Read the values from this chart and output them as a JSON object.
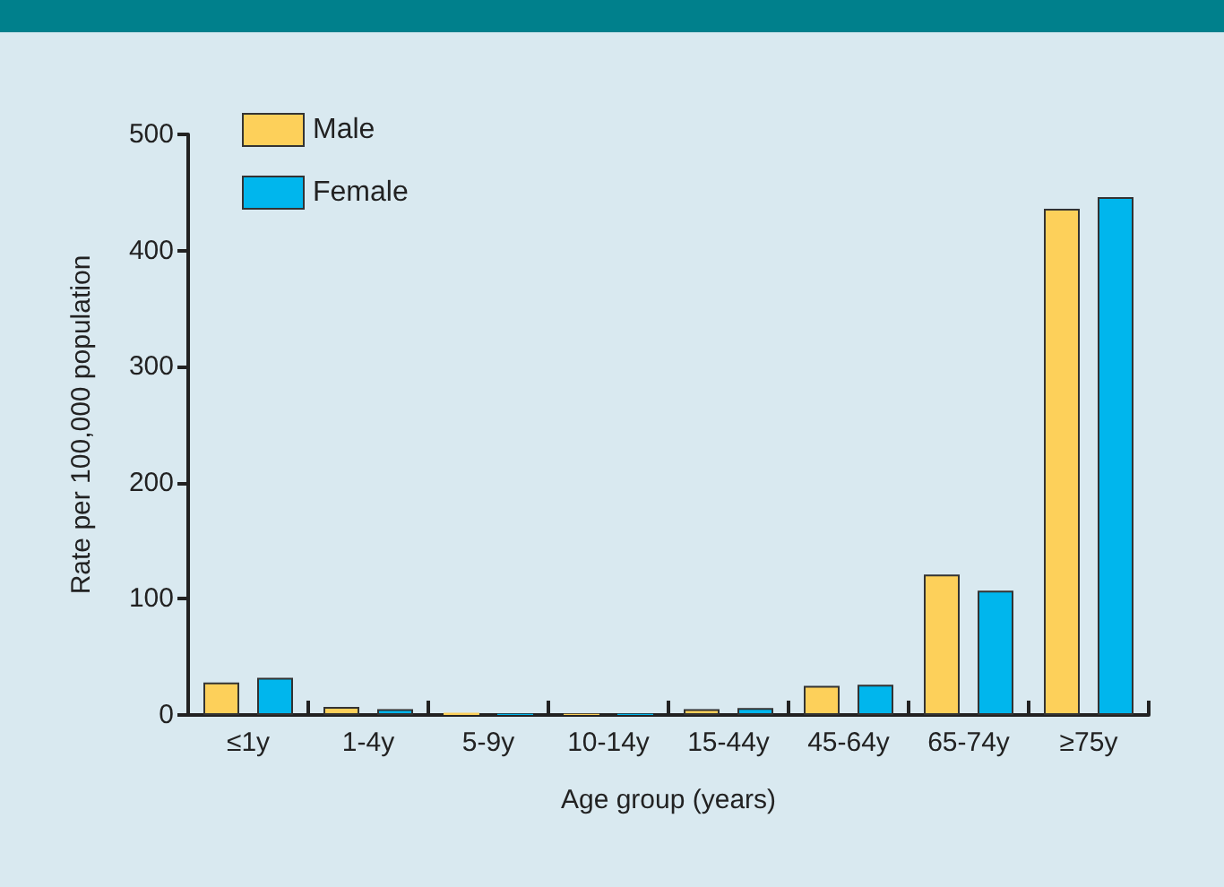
{
  "chart_data": {
    "type": "bar",
    "xlabel": "Age group (years)",
    "ylabel": "Rate per 100,000 population",
    "categories": [
      "≤1y",
      "1-4y",
      "5-9y",
      "10-14y",
      "15-44y",
      "45-64y",
      "65-74y",
      "≥75y"
    ],
    "series": [
      {
        "name": "Male",
        "color": "#fdd05a",
        "values": [
          28,
          7,
          2,
          1,
          5,
          25,
          121,
          436
        ]
      },
      {
        "name": "Female",
        "color": "#00b6ed",
        "values": [
          32,
          5,
          1,
          1,
          6,
          26,
          107,
          446
        ]
      }
    ],
    "ylim": [
      0,
      500
    ],
    "yticks": [
      0,
      100,
      200,
      300,
      400,
      500
    ],
    "grid": false,
    "legend": "top left"
  }
}
